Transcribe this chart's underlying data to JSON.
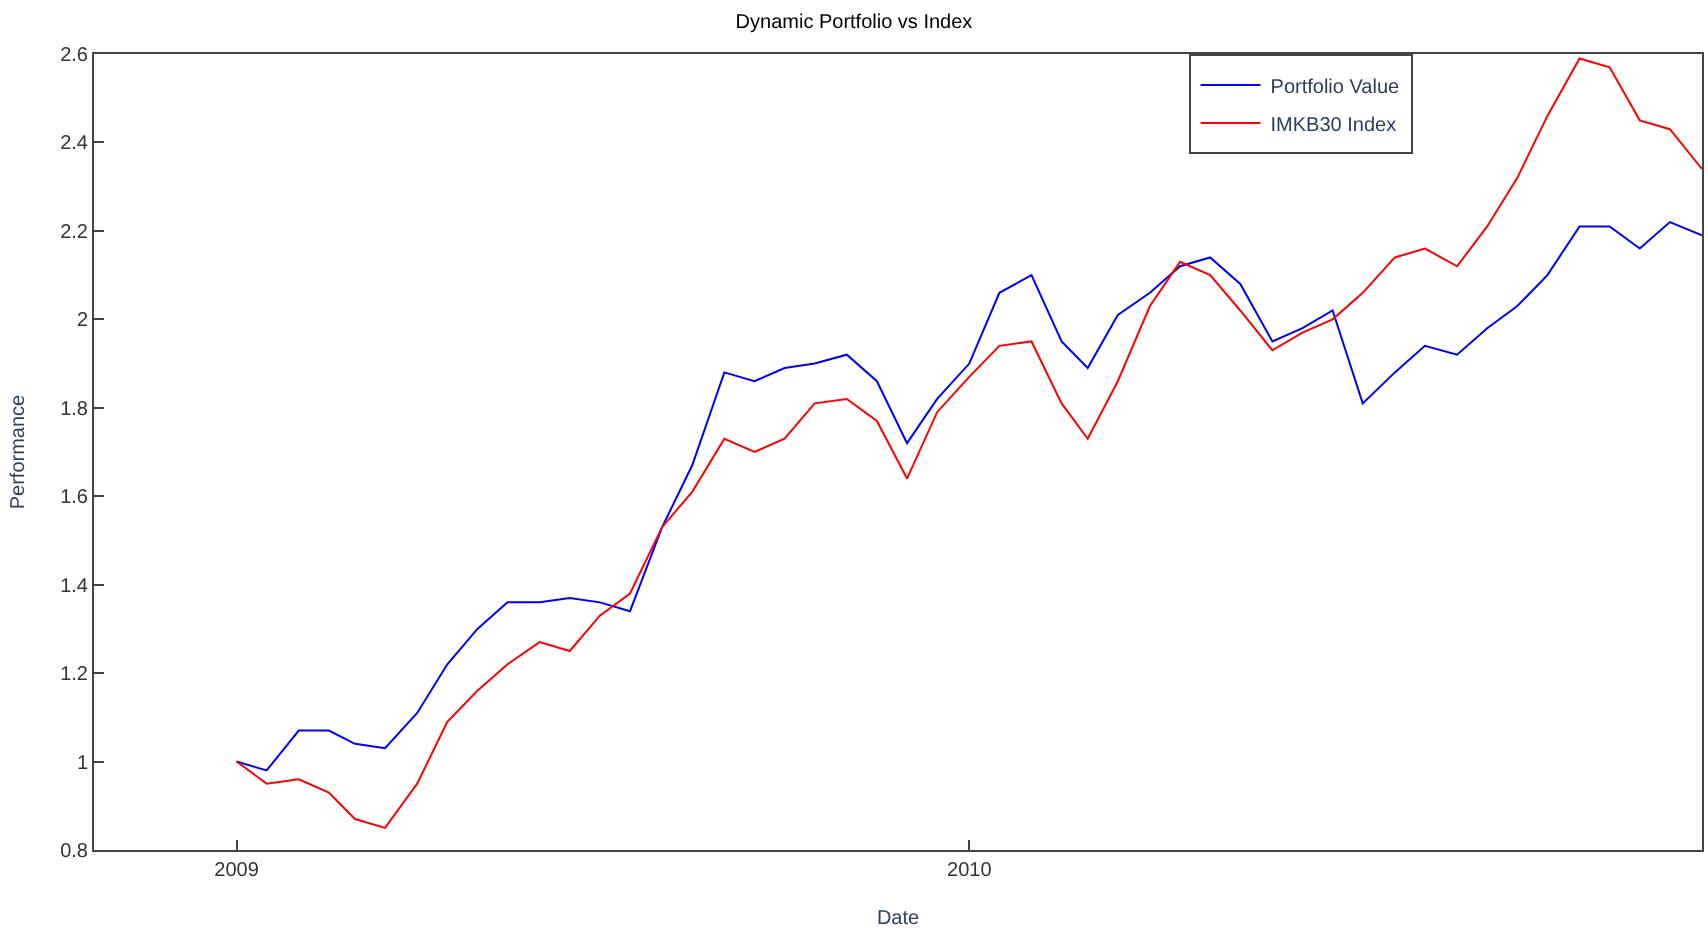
{
  "chart_data": {
    "type": "line",
    "title": "Dynamic Portfolio vs Index",
    "xlabel": "Date",
    "ylabel": "Performance",
    "x": [
      "2009-01-01",
      "2009-01-16",
      "2009-02-01",
      "2009-02-16",
      "2009-03-01",
      "2009-03-16",
      "2009-04-01",
      "2009-04-16",
      "2009-05-01",
      "2009-05-16",
      "2009-06-01",
      "2009-06-16",
      "2009-07-01",
      "2009-07-16",
      "2009-08-01",
      "2009-08-16",
      "2009-09-01",
      "2009-09-16",
      "2009-10-01",
      "2009-10-16",
      "2009-11-01",
      "2009-11-16",
      "2009-12-01",
      "2009-12-16",
      "2010-01-01",
      "2010-01-16",
      "2010-02-01",
      "2010-02-16",
      "2010-03-01",
      "2010-03-16",
      "2010-04-01",
      "2010-04-16",
      "2010-05-01",
      "2010-05-16",
      "2010-06-01",
      "2010-06-16",
      "2010-07-01",
      "2010-07-16",
      "2010-08-01",
      "2010-08-16",
      "2010-09-01",
      "2010-09-16",
      "2010-10-01",
      "2010-10-16",
      "2010-11-01",
      "2010-11-16",
      "2010-12-01",
      "2010-12-16",
      "2011-01-01"
    ],
    "series": [
      {
        "name": "Portfolio Value",
        "color": "#0000ff",
        "values": [
          1.0,
          0.98,
          1.07,
          1.07,
          1.04,
          1.03,
          1.11,
          1.22,
          1.3,
          1.36,
          1.36,
          1.37,
          1.36,
          1.34,
          1.53,
          1.67,
          1.88,
          1.86,
          1.89,
          1.9,
          1.92,
          1.86,
          1.72,
          1.82,
          1.9,
          2.06,
          2.1,
          1.95,
          1.89,
          2.01,
          2.06,
          2.12,
          2.14,
          2.08,
          1.95,
          1.98,
          2.02,
          1.81,
          1.88,
          1.94,
          1.92,
          1.98,
          2.03,
          2.1,
          2.21,
          2.21,
          2.16,
          2.22,
          2.19
        ]
      },
      {
        "name": "IMKB30 Index",
        "color": "#ff0000",
        "values": [
          1.0,
          0.95,
          0.96,
          0.93,
          0.87,
          0.85,
          0.95,
          1.09,
          1.16,
          1.22,
          1.27,
          1.25,
          1.33,
          1.38,
          1.53,
          1.61,
          1.73,
          1.7,
          1.73,
          1.81,
          1.82,
          1.77,
          1.64,
          1.79,
          1.87,
          1.94,
          1.95,
          1.81,
          1.73,
          1.86,
          2.03,
          2.13,
          2.1,
          2.02,
          1.93,
          1.97,
          2.0,
          2.06,
          2.14,
          2.16,
          2.12,
          2.21,
          2.32,
          2.46,
          2.59,
          2.57,
          2.45,
          2.43,
          2.34
        ]
      }
    ],
    "xlim": [
      "2008-10-22",
      "2011-01-01"
    ],
    "xticks": [
      "2009",
      "2010"
    ],
    "ylim": [
      0.8,
      2.6
    ],
    "yticks": [
      0.8,
      1,
      1.2,
      1.4,
      1.6,
      1.8,
      2,
      2.2,
      2.4,
      2.6
    ],
    "grid": false,
    "legend": "top right",
    "marker": "none",
    "line_style": "solid"
  }
}
